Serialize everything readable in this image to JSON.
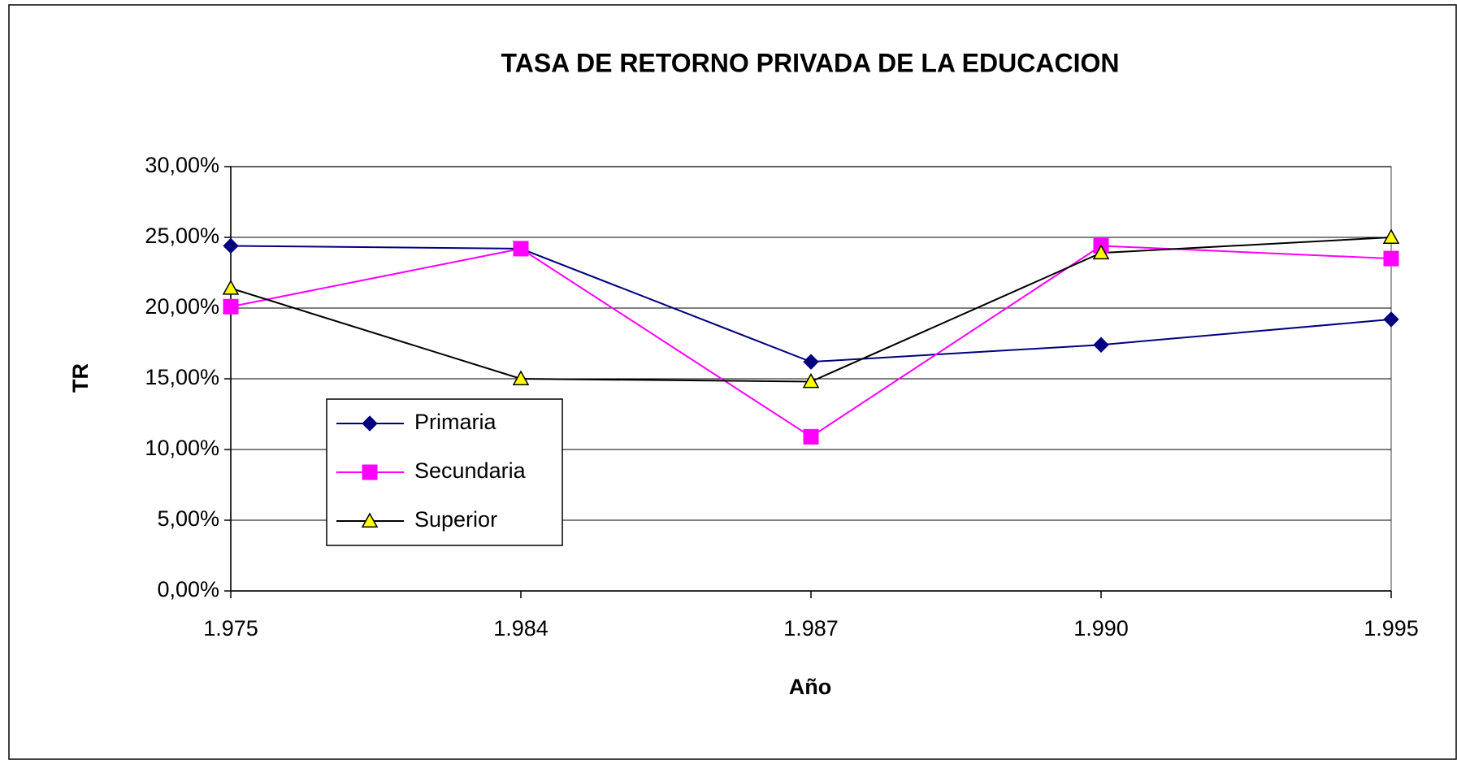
{
  "chart_data": {
    "type": "line",
    "title": "TASA DE RETORNO PRIVADA DE LA EDUCACION",
    "x_label": "Año",
    "y_label": "TR",
    "categories": [
      "1.975",
      "1.984",
      "1.987",
      "1.990",
      "1.995"
    ],
    "series": [
      {
        "name": "Primaria",
        "color": "#000080",
        "marker": "diamond",
        "marker_color": "#000080",
        "values": [
          24.4,
          24.2,
          16.2,
          17.4,
          19.2
        ]
      },
      {
        "name": "Secundaria",
        "color": "#ff00ff",
        "marker": "square",
        "marker_color": "#ff00ff",
        "values": [
          20.1,
          24.2,
          10.9,
          24.4,
          23.5
        ]
      },
      {
        "name": "Superior",
        "color": "#000000",
        "marker": "triangle",
        "marker_color": "#ffff00",
        "values": [
          21.4,
          15.0,
          14.8,
          23.9,
          25.0
        ]
      }
    ],
    "ylim": [
      0,
      30
    ],
    "yticks": [
      {
        "value": 0,
        "label": "0,00%"
      },
      {
        "value": 5,
        "label": "5,00%"
      },
      {
        "value": 10,
        "label": "10,00%"
      },
      {
        "value": 15,
        "label": "15,00%"
      },
      {
        "value": 20,
        "label": "20,00%"
      },
      {
        "value": 25,
        "label": "25,00%"
      },
      {
        "value": 30,
        "label": "30,00%"
      }
    ],
    "grid": true,
    "legend": "left"
  }
}
